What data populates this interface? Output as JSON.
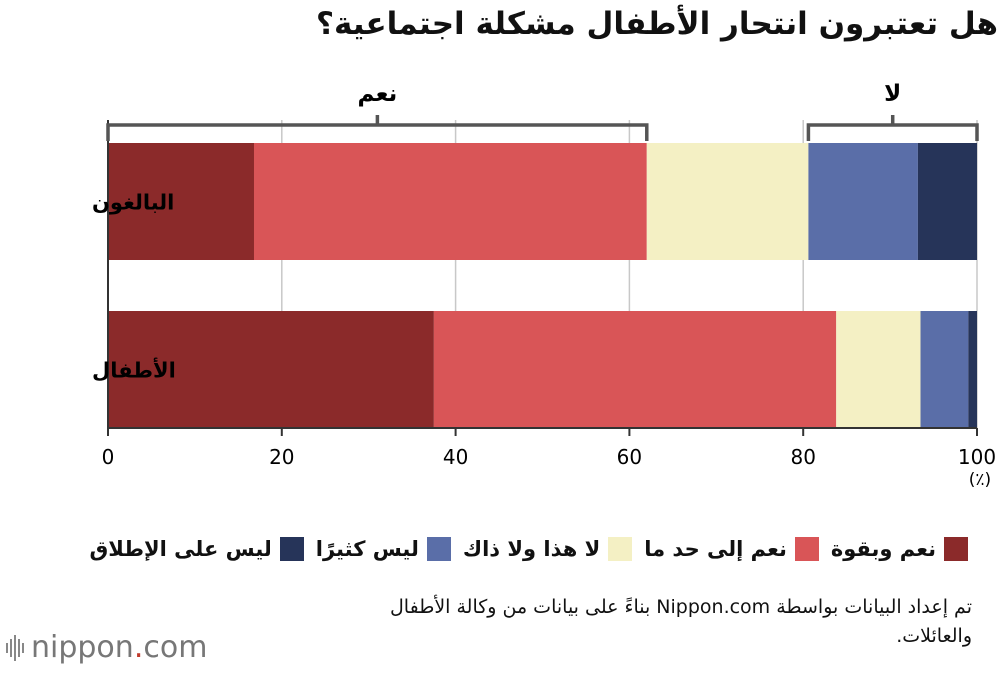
{
  "title": "هل تعتبرون انتحار الأطفال مشكلة اجتماعية؟",
  "chart_data": {
    "type": "bar",
    "orientation": "horizontal",
    "stacked": true,
    "categories": [
      "البالغون",
      "الأطفال"
    ],
    "series": [
      {
        "name": "نعم وبقوة",
        "color": "#8b2a2a",
        "values": [
          16.8,
          37.5
        ]
      },
      {
        "name": "نعم إلى حد ما",
        "color": "#d95557",
        "values": [
          45.2,
          46.3
        ]
      },
      {
        "name": "لا هذا ولا ذاك",
        "color": "#f4f0c4",
        "values": [
          18.6,
          9.7
        ]
      },
      {
        "name": "ليس كثيرًا",
        "color": "#5a6ea8",
        "values": [
          12.6,
          5.5
        ]
      },
      {
        "name": "ليس على الإطلاق",
        "color": "#263459",
        "values": [
          6.8,
          1.0
        ]
      }
    ],
    "xlim": [
      0,
      100
    ],
    "xticks": [
      0,
      20,
      40,
      60,
      80,
      100
    ],
    "xunit": "(٪)",
    "grid": true,
    "brackets": [
      {
        "label": "نعم",
        "from": 0,
        "to": 62
      },
      {
        "label": "لا",
        "from": 80.6,
        "to": 100
      }
    ]
  },
  "legend": [
    {
      "label": "نعم وبقوة",
      "color": "#8b2a2a"
    },
    {
      "label": "نعم إلى حد ما",
      "color": "#d95557"
    },
    {
      "label": "لا هذا ولا ذاك",
      "color": "#f4f0c4"
    },
    {
      "label": "ليس كثيرًا",
      "color": "#5a6ea8"
    },
    {
      "label": "ليس على الإطلاق",
      "color": "#263459"
    }
  ],
  "source_text": "تم إعداد البيانات بواسطة Nippon.com بناءً على بيانات من وكالة الأطفال والعائلات.",
  "logo": {
    "name": "nippon",
    "dot": ".",
    "suffix": "com"
  }
}
